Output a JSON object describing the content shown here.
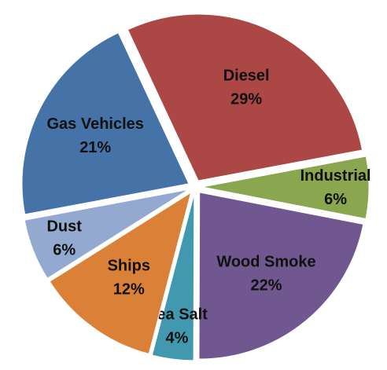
{
  "chart_data": {
    "type": "pie",
    "categories": [
      "Diesel",
      "Industrial",
      "Wood Smoke",
      "Sea Salt",
      "Ships",
      "Dust",
      "Gas Vehicles"
    ],
    "values": [
      29,
      6,
      22,
      4,
      12,
      6,
      21
    ],
    "value_labels": [
      "29%",
      "6%",
      "22%",
      "4%",
      "12%",
      "6%",
      "21%"
    ],
    "colors": [
      "#ab4744",
      "#8aa64e",
      "#71578f",
      "#4198af",
      "#da8137",
      "#94a9d0",
      "#4572a7"
    ]
  }
}
